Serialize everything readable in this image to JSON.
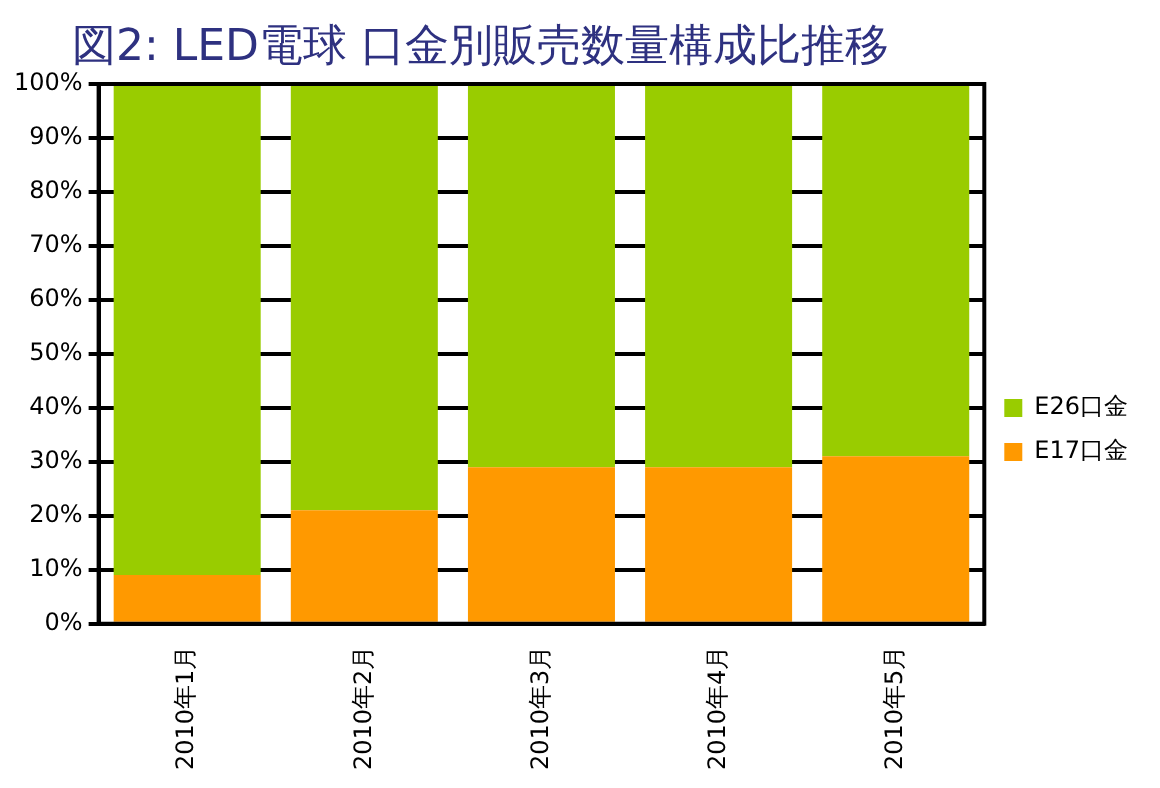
{
  "chart_data": {
    "type": "bar",
    "title": "図2: LED電球 口金別販売数量構成比推移",
    "categories": [
      "2010年1月",
      "2010年2月",
      "2010年3月",
      "2010年4月",
      "2010年5月"
    ],
    "series": [
      {
        "name": "E17口金",
        "color": "#ff9900",
        "values": [
          9,
          21,
          29,
          29,
          31
        ]
      },
      {
        "name": "E26口金",
        "color": "#99cc00",
        "values": [
          91,
          79,
          71,
          71,
          69
        ]
      }
    ],
    "stacked": true,
    "ylim": [
      0,
      100
    ],
    "yticks": [
      {
        "value": 0,
        "label": "0%"
      },
      {
        "value": 10,
        "label": "10%"
      },
      {
        "value": 20,
        "label": "20%"
      },
      {
        "value": 30,
        "label": "30%"
      },
      {
        "value": 40,
        "label": "40%"
      },
      {
        "value": 50,
        "label": "50%"
      },
      {
        "value": 60,
        "label": "60%"
      },
      {
        "value": 70,
        "label": "70%"
      },
      {
        "value": 80,
        "label": "80%"
      },
      {
        "value": 90,
        "label": "90%"
      },
      {
        "value": 100,
        "label": "100%"
      }
    ],
    "grid": "y",
    "legend": "right"
  }
}
